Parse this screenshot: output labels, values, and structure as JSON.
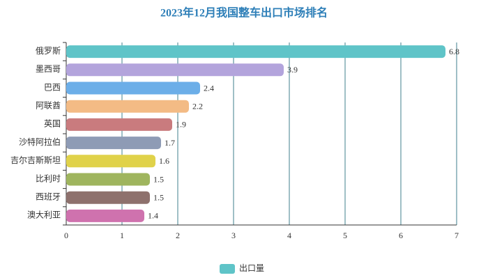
{
  "chart_data": {
    "type": "bar",
    "orientation": "horizontal",
    "title": "2023年12月我国整车出口市场排名",
    "categories": [
      "俄罗斯",
      "墨西哥",
      "巴西",
      "阿联酋",
      "英国",
      "沙特阿拉伯",
      "吉尔吉斯斯坦",
      "比利时",
      "西班牙",
      "澳大利亚"
    ],
    "series": [
      {
        "name": "出口量",
        "color": "#5fc4c8",
        "values": [
          6.8,
          3.9,
          2.4,
          2.2,
          1.9,
          1.7,
          1.6,
          1.5,
          1.5,
          1.4
        ],
        "colors": [
          "#5fc4c8",
          "#b3a4dc",
          "#6caee8",
          "#f3bb85",
          "#c97b7e",
          "#8e9bb5",
          "#e0d24a",
          "#9fb55e",
          "#8e716d",
          "#cf72ae"
        ]
      }
    ],
    "xlim": [
      0,
      7
    ],
    "xticks": [
      0,
      1,
      2,
      3,
      4,
      5,
      6,
      7
    ],
    "grid": true,
    "legend": "bottom"
  }
}
